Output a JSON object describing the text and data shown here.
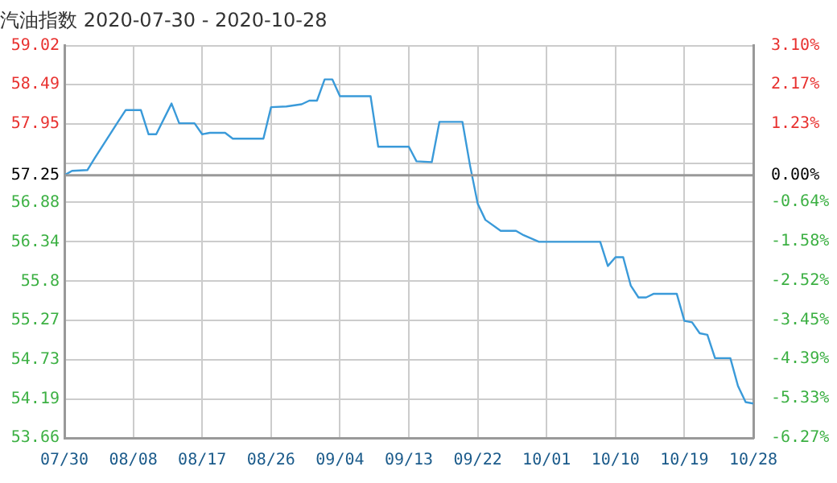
{
  "chart_data": {
    "type": "line",
    "title": "汽油指数 2020-07-30 - 2020-10-28",
    "x": [
      "--07-30",
      "--07-31",
      "--08-02",
      "--08-03",
      "--08-06",
      "--08-07",
      "--08-09",
      "--08-10",
      "--08-11",
      "--08-13",
      "--08-14",
      "--08-16",
      "--08-17",
      "--08-18",
      "--08-20",
      "--08-21",
      "--08-25",
      "--08-26",
      "--08-28",
      "--08-30",
      "--08-31",
      "--09-01",
      "--09-02",
      "--09-03",
      "--09-04",
      "--09-08",
      "--09-09",
      "--09-13",
      "--09-14",
      "--09-16",
      "--09-17",
      "--09-20",
      "--09-21",
      "--09-22",
      "--09-23",
      "--09-25",
      "--09-27",
      "--09-28",
      "--09-30",
      "--10-08",
      "--10-09",
      "--10-10",
      "--10-11",
      "--10-12",
      "--10-13",
      "--10-14",
      "--10-15",
      "--10-18",
      "--10-19",
      "--10-20",
      "--10-21",
      "--10-22",
      "--10-23",
      "--10-25",
      "--10-26",
      "--10-27",
      "--10-28"
    ],
    "series": [
      {
        "color": "#3a9ad9",
        "values": [
          57.25,
          57.31,
          57.32,
          57.49,
          57.98,
          58.14,
          58.14,
          57.81,
          57.81,
          58.23,
          57.96,
          57.96,
          57.81,
          57.83,
          57.83,
          57.75,
          57.75,
          58.18,
          58.19,
          58.22,
          58.27,
          58.27,
          58.56,
          58.56,
          58.33,
          58.33,
          57.64,
          57.64,
          57.44,
          57.43,
          57.98,
          57.98,
          57.38,
          56.86,
          56.64,
          56.49,
          56.49,
          56.43,
          56.34,
          56.34,
          56.01,
          56.13,
          56.13,
          55.74,
          55.58,
          55.58,
          55.63,
          55.63,
          55.26,
          55.24,
          55.09,
          55.07,
          54.75,
          54.75,
          54.37,
          54.15,
          54.13
        ]
      }
    ],
    "xlim": [
      "--07-30",
      "--10-28"
    ],
    "xticks": [
      {
        "value": "--07-30",
        "label": "07/30"
      },
      {
        "value": "--08-08",
        "label": "08/08"
      },
      {
        "value": "--08-17",
        "label": "08/17"
      },
      {
        "value": "--08-26",
        "label": "08/26"
      },
      {
        "value": "--09-04",
        "label": "09/04"
      },
      {
        "value": "--09-13",
        "label": "09/13"
      },
      {
        "value": "--09-22",
        "label": "09/22"
      },
      {
        "value": "--10-01",
        "label": "10/01"
      },
      {
        "value": "--10-10",
        "label": "10/10"
      },
      {
        "value": "--10-19",
        "label": "10/19"
      },
      {
        "value": "--10-28",
        "label": "10/28"
      }
    ],
    "ylim": [
      53.66,
      59.02
    ],
    "yticks": [
      59.02,
      58.49,
      57.95,
      {
        "value": 57.41,
        "label": null
      },
      57.25,
      56.88,
      56.34,
      55.8,
      55.27,
      54.73,
      54.19,
      53.66
    ],
    "y2lim": [
      -6.27,
      3.1
    ],
    "y2ticks": [
      {
        "value": 3.1,
        "label": "3.10%"
      },
      {
        "value": 2.17,
        "label": "2.17%"
      },
      {
        "value": 1.23,
        "label": "1.23%"
      },
      {
        "value": 0,
        "label": "0.00%"
      },
      {
        "value": -0.64,
        "label": "-0.64%"
      },
      {
        "value": -1.58,
        "label": "-1.58%"
      },
      {
        "value": -2.52,
        "label": "-2.52%"
      },
      {
        "value": -3.45,
        "label": "-3.45%"
      },
      {
        "value": -4.39,
        "label": "-4.39%"
      },
      {
        "value": -5.33,
        "label": "-5.33%"
      },
      {
        "value": -6.27,
        "label": "-6.27%"
      }
    ],
    "ref_lines": [
      {
        "axis": "y",
        "value": 57.25,
        "color": "#999999"
      }
    ],
    "grid": true,
    "marker": "none",
    "line_style": "solid"
  }
}
